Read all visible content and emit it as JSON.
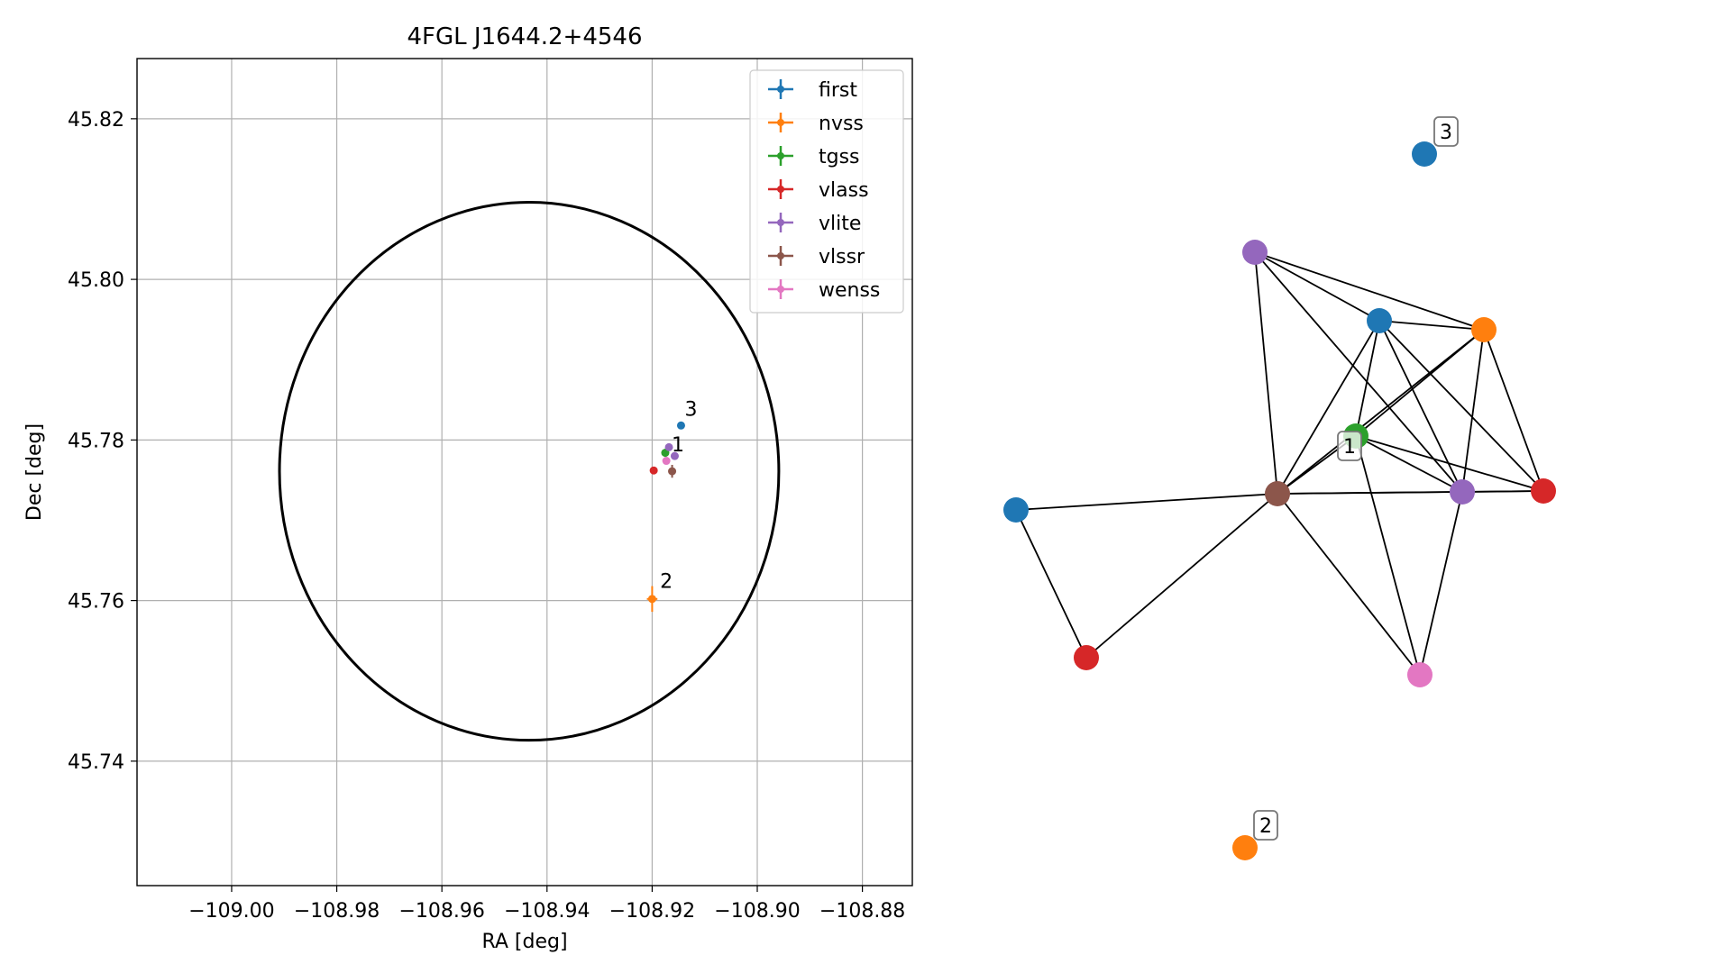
{
  "chart_data": [
    {
      "type": "scatter",
      "title": "4FGL J1644.2+4546",
      "xlabel": "RA [deg]",
      "ylabel": "Dec [deg]",
      "xlim": [
        -109.018,
        -108.8705
      ],
      "ylim": [
        45.7245,
        45.8275
      ],
      "xticks": [
        -109.0,
        -108.98,
        -108.96,
        -108.94,
        -108.92,
        -108.9,
        -108.88
      ],
      "xtick_labels": [
        "−109.00",
        "−108.98",
        "−108.96",
        "−108.94",
        "−108.92",
        "−108.90",
        "−108.88"
      ],
      "yticks": [
        45.74,
        45.76,
        45.78,
        45.8,
        45.82
      ],
      "ytick_labels": [
        "45.74",
        "45.76",
        "45.78",
        "45.80",
        "45.82"
      ],
      "grid": true,
      "legend_position": "top-right",
      "series": [
        {
          "name": "first",
          "color": "#1f77b4",
          "points": [
            {
              "x": -108.9145,
              "y": 45.7818,
              "xerr": 0,
              "yerr": 0
            }
          ]
        },
        {
          "name": "nvss",
          "color": "#ff7f0e",
          "points": [
            {
              "x": -108.92,
              "y": 45.7602,
              "xerr": 0.001,
              "yerr": 0.0016
            }
          ]
        },
        {
          "name": "tgss",
          "color": "#2ca02c",
          "points": [
            {
              "x": -108.9175,
              "y": 45.7784,
              "xerr": 0.0005,
              "yerr": 0.0005
            }
          ]
        },
        {
          "name": "vlass",
          "color": "#d62728",
          "points": [
            {
              "x": -108.9197,
              "y": 45.7762,
              "xerr": 0,
              "yerr": 0
            }
          ]
        },
        {
          "name": "vlite",
          "color": "#9467bd",
          "points": [
            {
              "x": -108.9168,
              "y": 45.7791,
              "xerr": 0,
              "yerr": 0
            },
            {
              "x": -108.9157,
              "y": 45.778,
              "xerr": 0,
              "yerr": 0
            }
          ]
        },
        {
          "name": "vlssr",
          "color": "#8c564b",
          "points": [
            {
              "x": -108.9162,
              "y": 45.7761,
              "xerr": 0.0005,
              "yerr": 0.0008
            }
          ]
        },
        {
          "name": "wenss",
          "color": "#e377c2",
          "points": [
            {
              "x": -108.9173,
              "y": 45.7774,
              "xerr": 0,
              "yerr": 0
            }
          ]
        }
      ],
      "ellipse": {
        "center_x": -108.9434,
        "center_y": 45.7761,
        "semi_major_x": 0.0475,
        "semi_minor_y": 0.0335,
        "color": "#000000"
      },
      "annotations": [
        {
          "text": "1",
          "x": -108.9163,
          "y": 45.7786
        },
        {
          "text": "2",
          "x": -108.9185,
          "y": 45.7616
        },
        {
          "text": "3",
          "x": -108.9138,
          "y": 45.783
        }
      ]
    },
    {
      "type": "network",
      "nodes": [
        {
          "id": "first_a",
          "color": "#1f77b4"
        },
        {
          "id": "first_b",
          "color": "#1f77b4"
        },
        {
          "id": "first_c",
          "color": "#1f77b4",
          "label": "3"
        },
        {
          "id": "nvss_a",
          "color": "#ff7f0e"
        },
        {
          "id": "nvss_b",
          "color": "#ff7f0e",
          "label": "2"
        },
        {
          "id": "tgss",
          "color": "#2ca02c",
          "label": "1"
        },
        {
          "id": "vlass_a",
          "color": "#d62728"
        },
        {
          "id": "vlass_b",
          "color": "#d62728"
        },
        {
          "id": "vlite_a",
          "color": "#9467bd"
        },
        {
          "id": "vlite_b",
          "color": "#9467bd"
        },
        {
          "id": "vlssr",
          "color": "#8c564b"
        },
        {
          "id": "wenss",
          "color": "#e377c2"
        }
      ],
      "edges": [
        [
          "vlite_a",
          "first_a"
        ],
        [
          "vlite_a",
          "nvss_a"
        ],
        [
          "vlite_a",
          "vlssr"
        ],
        [
          "vlite_a",
          "vlite_b"
        ],
        [
          "first_a",
          "nvss_a"
        ],
        [
          "first_a",
          "tgss"
        ],
        [
          "first_a",
          "vlssr"
        ],
        [
          "first_a",
          "vlite_b"
        ],
        [
          "first_a",
          "vlass_a"
        ],
        [
          "nvss_a",
          "tgss"
        ],
        [
          "nvss_a",
          "vlssr"
        ],
        [
          "nvss_a",
          "vlite_b"
        ],
        [
          "nvss_a",
          "vlass_a"
        ],
        [
          "tgss",
          "vlssr"
        ],
        [
          "tgss",
          "vlite_b"
        ],
        [
          "tgss",
          "vlass_a"
        ],
        [
          "tgss",
          "wenss"
        ],
        [
          "vlssr",
          "vlite_b"
        ],
        [
          "vlssr",
          "vlass_a"
        ],
        [
          "vlssr",
          "first_b"
        ],
        [
          "vlssr",
          "vlass_b"
        ],
        [
          "vlssr",
          "wenss"
        ],
        [
          "vlite_b",
          "vlass_a"
        ],
        [
          "vlite_b",
          "wenss"
        ],
        [
          "first_b",
          "vlass_b"
        ]
      ]
    }
  ]
}
